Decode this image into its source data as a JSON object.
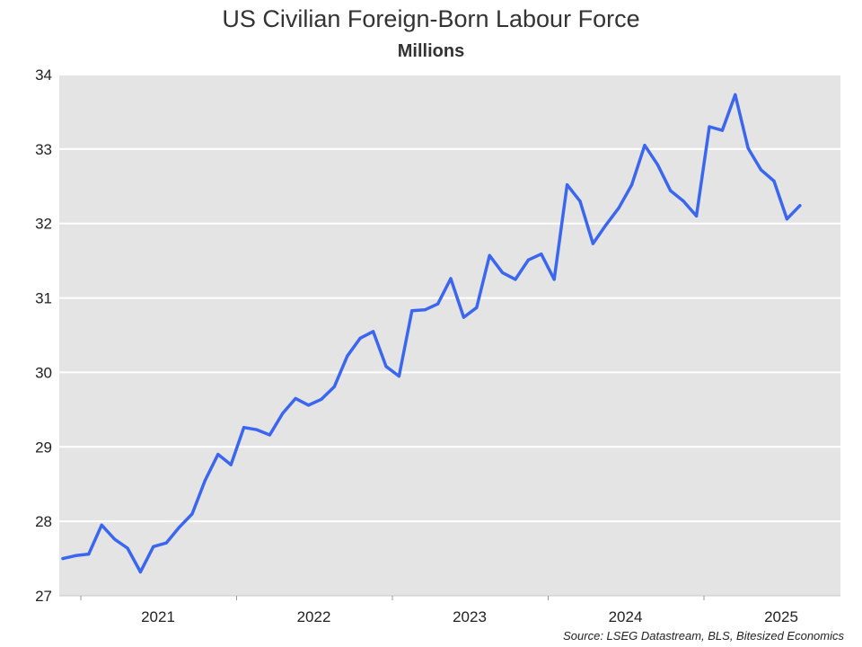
{
  "chart_data": {
    "type": "line",
    "title": "US Civilian Foreign-Born Labour Force",
    "subtitle": "Millions",
    "source": "Source: LSEG Datastream, BLS, Bitesized Economics",
    "ylim": [
      27,
      34
    ],
    "yticks": [
      27,
      28,
      29,
      30,
      31,
      32,
      33,
      34
    ],
    "xticks": [
      "2021",
      "2022",
      "2023",
      "2024",
      "2025"
    ],
    "grid": true,
    "series": [
      {
        "color": "#3b66f0",
        "x": [
          "2020-06",
          "2020-07",
          "2020-08",
          "2020-09",
          "2020-10",
          "2020-11",
          "2020-12",
          "2021-01",
          "2021-02",
          "2021-03",
          "2021-04",
          "2021-05",
          "2021-06",
          "2021-07",
          "2021-08",
          "2021-09",
          "2021-10",
          "2021-11",
          "2021-12",
          "2022-01",
          "2022-02",
          "2022-03",
          "2022-04",
          "2022-05",
          "2022-06",
          "2022-07",
          "2022-08",
          "2022-09",
          "2022-10",
          "2022-11",
          "2022-12",
          "2023-01",
          "2023-02",
          "2023-03",
          "2023-04",
          "2023-05",
          "2023-06",
          "2023-07",
          "2023-08",
          "2023-09",
          "2023-10",
          "2023-11",
          "2023-12",
          "2024-01",
          "2024-02",
          "2024-03",
          "2024-04",
          "2024-05",
          "2024-06",
          "2024-07",
          "2024-08",
          "2024-09",
          "2024-10",
          "2024-11",
          "2024-12",
          "2025-01",
          "2025-02",
          "2025-03"
        ],
        "values": [
          27.5,
          27.54,
          27.56,
          27.95,
          27.76,
          27.64,
          27.32,
          27.66,
          27.71,
          27.92,
          28.1,
          28.55,
          28.9,
          28.76,
          29.26,
          29.23,
          29.16,
          29.45,
          29.65,
          29.56,
          29.64,
          29.81,
          30.22,
          30.46,
          30.55,
          30.08,
          29.95,
          30.83,
          30.84,
          30.92,
          31.26,
          30.74,
          30.87,
          31.57,
          31.34,
          31.25,
          31.51,
          31.59,
          31.25,
          32.52,
          32.3,
          31.73,
          31.98,
          32.21,
          32.52,
          33.05,
          32.79,
          32.44,
          32.3,
          32.1,
          33.3,
          33.25,
          33.73,
          33.01,
          32.72,
          32.57,
          32.06,
          32.24
        ]
      }
    ]
  }
}
